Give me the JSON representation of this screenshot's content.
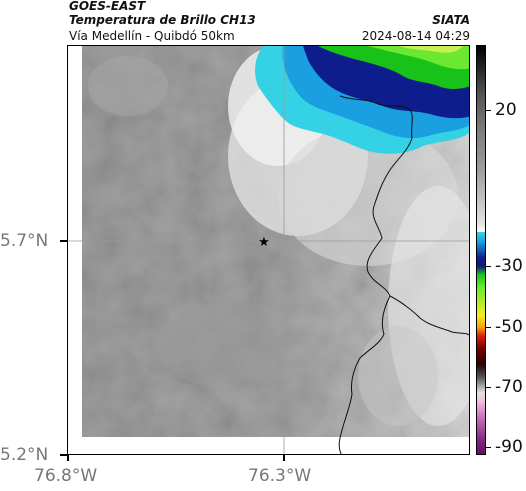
{
  "header": {
    "title_line1": "GOES-EAST",
    "title_line2": "Temperatura de Brillo CH13",
    "brand": "SIATA",
    "subtitle": "Vía Medellín - Quibdó 50km",
    "datetime": "2024-08-14 04:29"
  },
  "map": {
    "lat_labels": [
      "5.7°N",
      "5.2°N"
    ],
    "lon_labels": [
      "76.8°W",
      "76.3°W"
    ],
    "marker_icon": "star-icon"
  },
  "colorbar": {
    "labels": [
      "20",
      "-30",
      "-50",
      "-70",
      "-90"
    ]
  },
  "colors": {
    "cloud_cyan": "#35d2e6",
    "cloud_blue": "#1aa0e0",
    "cloud_navy": "#0d1e8c",
    "cloud_green": "#18c218",
    "cloud_lime": "#6ae832"
  }
}
